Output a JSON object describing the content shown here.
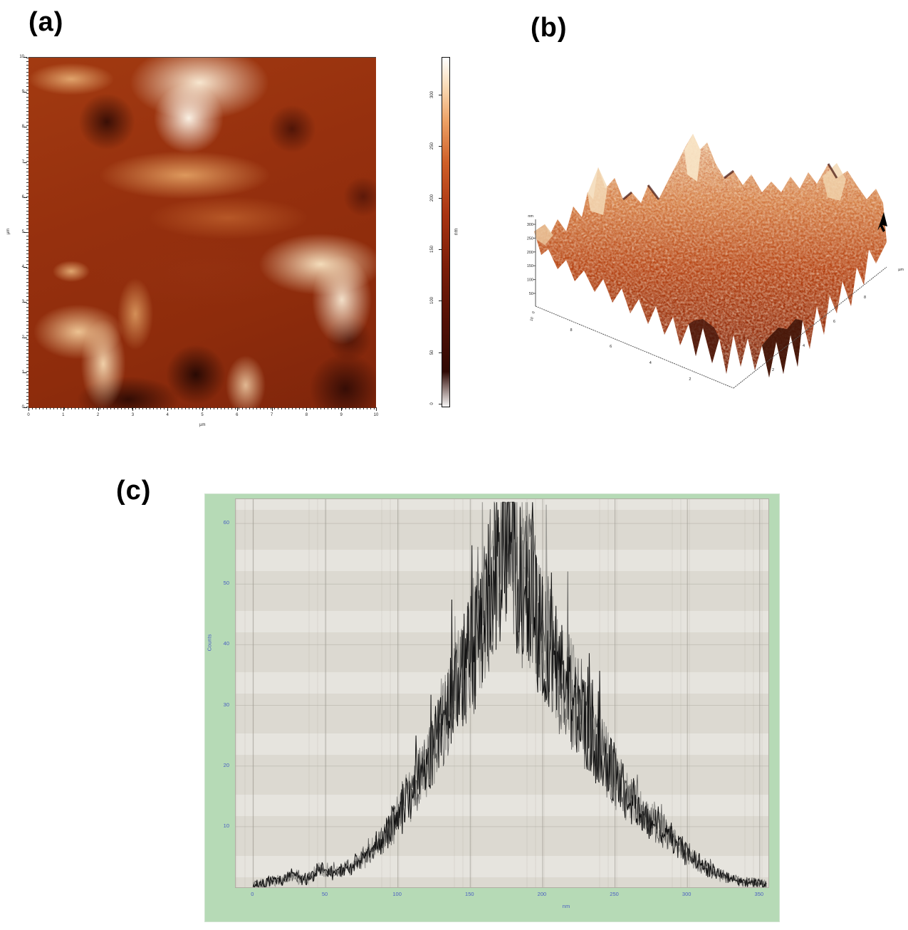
{
  "figure": {
    "panel_a_label": "(a)",
    "panel_b_label": "(b)",
    "panel_c_label": "(c)"
  },
  "panel_a": {
    "description": "AFM topography false-color image",
    "x_ticks": [
      "0",
      "1",
      "2",
      "3",
      "4",
      "5",
      "6",
      "7",
      "8",
      "9",
      "10"
    ],
    "y_ticks": [
      "10",
      "9",
      "8",
      "7",
      "6",
      "5",
      "4",
      "3",
      "2",
      "1",
      "0"
    ],
    "x_unit": "µm",
    "y_unit": "µm",
    "colorbar": {
      "ticks": [
        "300",
        "250",
        "200",
        "150",
        "100",
        "50",
        "0"
      ],
      "unit": "nm",
      "top_color": "#ffffff",
      "bottom_color": "#150302"
    }
  },
  "panel_b": {
    "description": "AFM 3D surface rendering",
    "z_ticks": [
      "300",
      "250",
      "200",
      "150",
      "100",
      "50"
    ],
    "z_origin": "0",
    "z_unit": "nm",
    "left_axis_ticks": [
      "8",
      "6",
      "4",
      "2"
    ],
    "left_axis_origin": "10",
    "right_axis_ticks": [
      "2",
      "4",
      "6",
      "8"
    ],
    "corner_label": "0",
    "right_axis_unit": "µm",
    "arrow": "peak-marker-arrow"
  },
  "chart_data": {
    "type": "line",
    "title": "",
    "xlabel": "nm",
    "ylabel": "Counts",
    "x_ticks": [
      0,
      50,
      100,
      150,
      200,
      250,
      300,
      350
    ],
    "y_ticks": [
      10,
      20,
      30,
      40,
      50,
      60
    ],
    "xlim": [
      -12,
      356
    ],
    "ylim": [
      0,
      64
    ],
    "grid": true,
    "legend": "none",
    "peak": {
      "x": 177,
      "y": 62
    },
    "envelope_x": [
      0,
      10,
      20,
      28,
      33,
      40,
      46,
      52,
      60,
      68,
      75,
      82,
      90,
      97,
      103,
      110,
      117,
      124,
      130,
      136,
      142,
      148,
      153,
      158,
      163,
      167,
      171,
      174,
      177,
      180,
      183,
      186,
      190,
      194,
      198,
      203,
      208,
      214,
      220,
      226,
      233,
      240,
      247,
      254,
      261,
      268,
      275,
      282,
      288,
      294,
      300,
      307,
      314,
      321,
      328,
      335,
      342,
      350,
      355
    ],
    "envelope_y": [
      0.4,
      0.8,
      1.2,
      2.2,
      1.2,
      1.5,
      3.4,
      2.2,
      2.6,
      3.4,
      4.5,
      6,
      8,
      10.5,
      13,
      16,
      19,
      23,
      27,
      30,
      33,
      37,
      40,
      44,
      48,
      52,
      56,
      60,
      62,
      57,
      52,
      49,
      51,
      47,
      43,
      40,
      37,
      34,
      31,
      28,
      25,
      22,
      19.5,
      17,
      14.5,
      12.5,
      11,
      10,
      8.5,
      7,
      5.5,
      4.2,
      3,
      2.2,
      1.6,
      1.2,
      0.9,
      0.6,
      0.4
    ],
    "noise": {
      "relative": 0.27,
      "absolute": 0.8,
      "spike_prob": 0.06,
      "spike_gain": 0.5,
      "seed": 7
    },
    "colors": {
      "frame": "#b6dab6",
      "plot_bg": "#dcd9d1",
      "tick_text": "#4a5fc2",
      "line": "#0d0d0d",
      "grid_v": "rgba(140,137,128,0.55)",
      "grid_h": "rgba(160,157,148,0.38)"
    }
  }
}
